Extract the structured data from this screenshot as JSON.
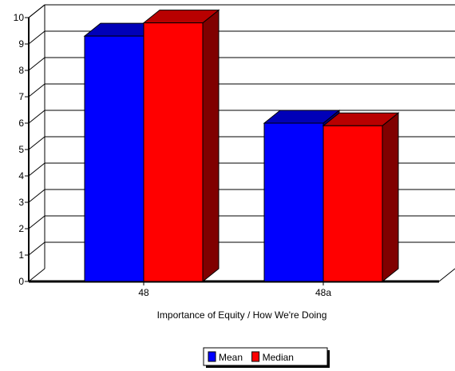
{
  "chart_data": {
    "type": "bar",
    "title": "",
    "xlabel": "Importance of Equity / How We're Doing",
    "ylabel": "",
    "categories": [
      "48",
      "48a"
    ],
    "series": [
      {
        "name": "Mean",
        "values": [
          9.3,
          6.0
        ],
        "color": "#0000ff"
      },
      {
        "name": "Median",
        "values": [
          9.8,
          5.9
        ],
        "color": "#ff0000"
      }
    ],
    "ylim": [
      0,
      10
    ],
    "yticks": [
      "0",
      "1",
      "2",
      "3",
      "4",
      "5",
      "6",
      "7",
      "8",
      "9",
      "10"
    ],
    "grid": true,
    "legend_position": "bottom-center",
    "style": "3d-bar"
  }
}
